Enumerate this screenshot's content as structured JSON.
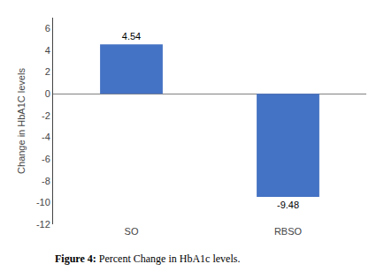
{
  "chart_data": {
    "type": "bar",
    "categories": [
      "SO",
      "RBSO"
    ],
    "values": [
      4.54,
      -9.48
    ],
    "color": "#4472C4",
    "ylabel": "Change in HbA1C levels",
    "ylim": [
      -12,
      7
    ],
    "yticks": [
      -12,
      -10,
      -8,
      -6,
      -4,
      -2,
      0,
      2,
      4,
      6
    ],
    "data_labels": true,
    "grid": false,
    "annotations": [
      "Figure 4:",
      "Percent Change in HbA1c levels."
    ]
  }
}
